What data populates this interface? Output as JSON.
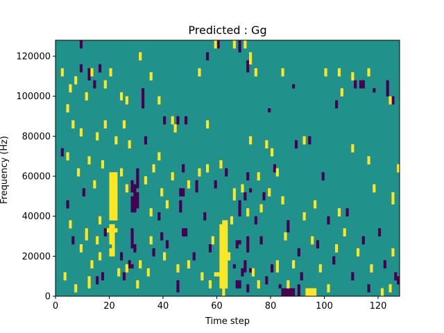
{
  "chart_data": {
    "type": "heatmap",
    "title": "Predicted : Gg",
    "xlabel": "Time step",
    "ylabel": "Frequency (Hz)",
    "xlim": [
      0,
      128
    ],
    "ylim": [
      0,
      128000
    ],
    "xticks": [
      0,
      20,
      40,
      60,
      80,
      100,
      120
    ],
    "yticks": [
      0,
      20000,
      40000,
      60000,
      80000,
      100000,
      120000
    ],
    "ytick_labels": [
      "0",
      "20000",
      "40000",
      "60000",
      "80000",
      "100000",
      "120000"
    ],
    "grid": false,
    "background_value": 0,
    "colors": {
      "background": "#21918c",
      "high": "#fde725",
      "low": "#440154"
    },
    "time_steps": 128,
    "frequency_bins": 64,
    "bin_width_hz": 2000,
    "cells": [
      [
        20,
        0,
        20000,
        24000,
        1
      ],
      [
        21,
        0,
        20000,
        24000,
        1
      ],
      [
        20,
        0,
        26000,
        36000,
        1
      ],
      [
        21,
        0,
        24000,
        36000,
        1
      ],
      [
        20,
        0,
        38000,
        62000,
        1
      ],
      [
        21,
        0,
        38000,
        62000,
        1
      ],
      [
        22,
        0,
        38000,
        62000,
        1
      ],
      [
        19,
        0,
        32000,
        34000,
        1
      ],
      [
        22,
        0,
        32000,
        34000,
        1
      ],
      [
        61,
        0,
        4000,
        36000,
        1
      ],
      [
        62,
        0,
        4000,
        38000,
        1
      ],
      [
        63,
        0,
        4000,
        38000,
        1
      ],
      [
        60,
        0,
        10000,
        12000,
        1
      ],
      [
        59,
        0,
        10000,
        12000,
        1
      ],
      [
        62,
        0,
        0,
        4000,
        1
      ],
      [
        93,
        0,
        0,
        4000,
        1
      ],
      [
        94,
        0,
        0,
        4000,
        1
      ],
      [
        95,
        0,
        0,
        4000,
        1
      ],
      [
        96,
        0,
        0,
        4000,
        1
      ],
      [
        84,
        0,
        0,
        4000,
        -1
      ],
      [
        85,
        0,
        0,
        4000,
        -1
      ],
      [
        86,
        0,
        0,
        4000,
        -1
      ],
      [
        87,
        0,
        0,
        4000,
        -1
      ],
      [
        88,
        0,
        0,
        4000,
        -1
      ],
      [
        90,
        0,
        0,
        6000,
        -1
      ],
      [
        83,
        0,
        4000,
        6000,
        -1
      ],
      [
        28,
        0,
        42000,
        50000,
        -1
      ],
      [
        29,
        0,
        42000,
        56000,
        -1
      ],
      [
        28,
        0,
        52000,
        58000,
        -1
      ],
      [
        28,
        0,
        24000,
        34000,
        -1
      ],
      [
        28,
        0,
        14000,
        16000,
        -1
      ],
      [
        29,
        0,
        22000,
        26000,
        -1
      ],
      [
        30,
        0,
        54000,
        64000,
        -1
      ],
      [
        30,
        0,
        44000,
        52000,
        -1
      ],
      [
        47,
        0,
        30000,
        34000,
        -1
      ],
      [
        48,
        0,
        30000,
        34000,
        -1
      ],
      [
        46,
        0,
        50000,
        54000,
        -1
      ],
      [
        47,
        0,
        50000,
        54000,
        -1
      ],
      [
        67,
        0,
        4000,
        8000,
        -1
      ],
      [
        68,
        0,
        4000,
        8000,
        -1
      ],
      [
        67,
        0,
        24000,
        28000,
        -1
      ],
      [
        68,
        0,
        26000,
        28000,
        -1
      ],
      [
        70,
        0,
        12000,
        18000,
        -1
      ],
      [
        71,
        0,
        22000,
        30000,
        -1
      ],
      [
        69,
        0,
        10000,
        14000,
        -1
      ],
      [
        72,
        0,
        12000,
        14000,
        -1
      ],
      [
        71,
        0,
        2000,
        6000,
        -1
      ],
      [
        66,
        0,
        14000,
        16000,
        -1
      ],
      [
        70,
        0,
        48000,
        52000,
        -1
      ],
      [
        68,
        0,
        40000,
        48000,
        -1
      ],
      [
        72,
        0,
        52000,
        54000,
        -1
      ],
      [
        71,
        0,
        58000,
        62000,
        -1
      ],
      [
        9,
        0,
        124000,
        128000,
        -1
      ],
      [
        9,
        0,
        112000,
        116000,
        -1
      ],
      [
        12,
        0,
        108000,
        114000,
        -1
      ],
      [
        14,
        0,
        104000,
        108000,
        -1
      ],
      [
        16,
        0,
        112000,
        116000,
        -1
      ],
      [
        32,
        0,
        94000,
        104000,
        -1
      ],
      [
        33,
        0,
        76000,
        80000,
        -1
      ],
      [
        45,
        0,
        86000,
        90000,
        -1
      ],
      [
        56,
        0,
        118000,
        122000,
        -1
      ],
      [
        60,
        0,
        124000,
        128000,
        -1
      ],
      [
        68,
        0,
        122000,
        128000,
        -1
      ],
      [
        71,
        0,
        112000,
        118000,
        -1
      ],
      [
        88,
        0,
        104000,
        106000,
        -1
      ],
      [
        104,
        0,
        94000,
        98000,
        -1
      ],
      [
        113,
        0,
        104000,
        108000,
        -1
      ],
      [
        118,
        0,
        102000,
        104000,
        -1
      ],
      [
        123,
        0,
        100000,
        108000,
        -1
      ],
      [
        125,
        0,
        96000,
        100000,
        -1
      ],
      [
        79,
        0,
        92000,
        94000,
        -1
      ],
      [
        89,
        0,
        74000,
        78000,
        -1
      ],
      [
        94,
        0,
        76000,
        80000,
        -1
      ],
      [
        99,
        0,
        58000,
        62000,
        -1
      ],
      [
        111,
        0,
        104000,
        108000,
        -1
      ],
      [
        114,
        0,
        104000,
        108000,
        -1
      ],
      [
        40,
        0,
        86000,
        90000,
        -1
      ],
      [
        48,
        0,
        86000,
        90000,
        -1
      ],
      [
        47,
        0,
        62000,
        66000,
        -1
      ],
      [
        52,
        0,
        52000,
        58000,
        -1
      ],
      [
        55,
        0,
        38000,
        42000,
        -1
      ],
      [
        59,
        0,
        54000,
        58000,
        -1
      ],
      [
        63,
        0,
        60000,
        64000,
        -1
      ],
      [
        77,
        0,
        48000,
        52000,
        -1
      ],
      [
        81,
        0,
        62000,
        66000,
        -1
      ],
      [
        86,
        0,
        32000,
        38000,
        -1
      ],
      [
        90,
        0,
        20000,
        24000,
        -1
      ],
      [
        101,
        0,
        36000,
        40000,
        -1
      ],
      [
        108,
        0,
        40000,
        44000,
        -1
      ],
      [
        114,
        0,
        26000,
        30000,
        -1
      ],
      [
        120,
        0,
        30000,
        34000,
        -1
      ],
      [
        126,
        0,
        8000,
        12000,
        -1
      ],
      [
        2,
        0,
        70000,
        74000,
        -1
      ],
      [
        4,
        0,
        44000,
        48000,
        -1
      ],
      [
        6,
        0,
        26000,
        30000,
        -1
      ],
      [
        10,
        0,
        50000,
        54000,
        -1
      ],
      [
        15,
        0,
        6000,
        10000,
        -1
      ],
      [
        17,
        0,
        8000,
        12000,
        -1
      ],
      [
        18,
        0,
        30000,
        34000,
        -1
      ],
      [
        24,
        0,
        18000,
        22000,
        -1
      ],
      [
        25,
        0,
        8000,
        12000,
        -1
      ],
      [
        27,
        0,
        14000,
        18000,
        -1
      ],
      [
        36,
        0,
        20000,
        24000,
        -1
      ],
      [
        38,
        0,
        38000,
        42000,
        -1
      ],
      [
        39,
        0,
        28000,
        32000,
        -1
      ],
      [
        41,
        0,
        24000,
        28000,
        -1
      ],
      [
        45,
        0,
        2000,
        8000,
        -1
      ],
      [
        46,
        0,
        42000,
        48000,
        -1
      ],
      [
        51,
        0,
        18000,
        22000,
        -1
      ],
      [
        57,
        0,
        22000,
        26000,
        -1
      ],
      [
        74,
        0,
        36000,
        40000,
        -1
      ],
      [
        76,
        0,
        26000,
        30000,
        -1
      ],
      [
        78,
        0,
        6000,
        10000,
        -1
      ],
      [
        80,
        0,
        12000,
        16000,
        -1
      ],
      [
        91,
        0,
        8000,
        12000,
        -1
      ],
      [
        97,
        0,
        24000,
        28000,
        -1
      ],
      [
        103,
        0,
        16000,
        20000,
        -1
      ],
      [
        110,
        0,
        8000,
        12000,
        -1
      ],
      [
        116,
        0,
        2000,
        6000,
        -1
      ],
      [
        122,
        0,
        14000,
        18000,
        -1
      ],
      [
        127,
        0,
        6000,
        10000,
        -1
      ],
      [
        2,
        0,
        110000,
        114000,
        1
      ],
      [
        4,
        0,
        92000,
        96000,
        1
      ],
      [
        5,
        0,
        102000,
        106000,
        1
      ],
      [
        7,
        0,
        106000,
        110000,
        1
      ],
      [
        11,
        0,
        98000,
        102000,
        1
      ],
      [
        13,
        0,
        110000,
        114000,
        1
      ],
      [
        18,
        0,
        104000,
        108000,
        1
      ],
      [
        20,
        0,
        110000,
        114000,
        1
      ],
      [
        24,
        0,
        98000,
        102000,
        1
      ],
      [
        26,
        0,
        96000,
        100000,
        1
      ],
      [
        31,
        0,
        118000,
        122000,
        1
      ],
      [
        35,
        0,
        108000,
        112000,
        1
      ],
      [
        38,
        0,
        96000,
        100000,
        1
      ],
      [
        43,
        0,
        86000,
        90000,
        1
      ],
      [
        53,
        0,
        110000,
        114000,
        1
      ],
      [
        59,
        0,
        124000,
        128000,
        1
      ],
      [
        66,
        0,
        124000,
        128000,
        1
      ],
      [
        70,
        0,
        124000,
        128000,
        1
      ],
      [
        72,
        0,
        116000,
        122000,
        1
      ],
      [
        74,
        0,
        110000,
        114000,
        1
      ],
      [
        84,
        0,
        110000,
        114000,
        1
      ],
      [
        100,
        0,
        110000,
        114000,
        1
      ],
      [
        105,
        0,
        110000,
        114000,
        1
      ],
      [
        106,
        0,
        100000,
        104000,
        1
      ],
      [
        110,
        0,
        108000,
        112000,
        1
      ],
      [
        116,
        0,
        110000,
        114000,
        1
      ],
      [
        124,
        0,
        96000,
        100000,
        1
      ],
      [
        6,
        0,
        84000,
        88000,
        1
      ],
      [
        9,
        0,
        80000,
        84000,
        1
      ],
      [
        15,
        0,
        78000,
        82000,
        1
      ],
      [
        18,
        0,
        84000,
        88000,
        1
      ],
      [
        22,
        0,
        76000,
        80000,
        1
      ],
      [
        25,
        0,
        84000,
        88000,
        1
      ],
      [
        27,
        0,
        74000,
        78000,
        1
      ],
      [
        44,
        0,
        82000,
        86000,
        1
      ],
      [
        56,
        0,
        84000,
        88000,
        1
      ],
      [
        72,
        0,
        76000,
        80000,
        1
      ],
      [
        78,
        0,
        74000,
        78000,
        1
      ],
      [
        80,
        0,
        70000,
        74000,
        1
      ],
      [
        92,
        0,
        76000,
        80000,
        1
      ],
      [
        110,
        0,
        72000,
        76000,
        1
      ],
      [
        116,
        0,
        66000,
        70000,
        1
      ],
      [
        127,
        0,
        62000,
        66000,
        1
      ],
      [
        4,
        0,
        68000,
        72000,
        1
      ],
      [
        8,
        0,
        60000,
        64000,
        1
      ],
      [
        12,
        0,
        66000,
        70000,
        1
      ],
      [
        14,
        0,
        54000,
        58000,
        1
      ],
      [
        17,
        0,
        64000,
        68000,
        1
      ],
      [
        24,
        0,
        60000,
        64000,
        1
      ],
      [
        26,
        0,
        52000,
        56000,
        1
      ],
      [
        33,
        0,
        56000,
        60000,
        1
      ],
      [
        36,
        0,
        62000,
        66000,
        1
      ],
      [
        38,
        0,
        68000,
        72000,
        1
      ],
      [
        43,
        0,
        58000,
        62000,
        1
      ],
      [
        49,
        0,
        54000,
        58000,
        1
      ],
      [
        53,
        0,
        60000,
        64000,
        1
      ],
      [
        56,
        0,
        62000,
        66000,
        1
      ],
      [
        61,
        0,
        64000,
        68000,
        1
      ],
      [
        66,
        0,
        48000,
        54000,
        1
      ],
      [
        69,
        0,
        52000,
        56000,
        1
      ],
      [
        75,
        0,
        58000,
        62000,
        1
      ],
      [
        79,
        0,
        50000,
        54000,
        1
      ],
      [
        84,
        0,
        46000,
        50000,
        1
      ],
      [
        92,
        0,
        38000,
        42000,
        1
      ],
      [
        96,
        0,
        44000,
        48000,
        1
      ],
      [
        105,
        0,
        40000,
        44000,
        1
      ],
      [
        118,
        0,
        52000,
        56000,
        1
      ],
      [
        125,
        0,
        46000,
        52000,
        1
      ],
      [
        5,
        0,
        34000,
        38000,
        1
      ],
      [
        9,
        0,
        22000,
        26000,
        1
      ],
      [
        11,
        0,
        28000,
        34000,
        1
      ],
      [
        13,
        0,
        14000,
        18000,
        1
      ],
      [
        12,
        0,
        4000,
        10000,
        1
      ],
      [
        16,
        0,
        18000,
        22000,
        1
      ],
      [
        26,
        0,
        12000,
        16000,
        1
      ],
      [
        31,
        0,
        14000,
        18000,
        1
      ],
      [
        35,
        0,
        26000,
        30000,
        1
      ],
      [
        40,
        0,
        18000,
        22000,
        1
      ],
      [
        45,
        0,
        12000,
        16000,
        1
      ],
      [
        49,
        0,
        14000,
        18000,
        1
      ],
      [
        54,
        0,
        8000,
        12000,
        1
      ],
      [
        57,
        0,
        4000,
        8000,
        1
      ],
      [
        64,
        0,
        18000,
        22000,
        1
      ],
      [
        73,
        0,
        10000,
        14000,
        1
      ],
      [
        75,
        0,
        4000,
        8000,
        1
      ],
      [
        82,
        0,
        12000,
        18000,
        1
      ],
      [
        85,
        0,
        28000,
        32000,
        1
      ],
      [
        88,
        0,
        14000,
        18000,
        1
      ],
      [
        95,
        0,
        26000,
        30000,
        1
      ],
      [
        98,
        0,
        12000,
        16000,
        1
      ],
      [
        104,
        0,
        22000,
        26000,
        1
      ],
      [
        107,
        0,
        30000,
        34000,
        1
      ],
      [
        112,
        0,
        20000,
        24000,
        1
      ],
      [
        117,
        0,
        12000,
        16000,
        1
      ],
      [
        121,
        0,
        0,
        4000,
        1
      ],
      [
        125,
        0,
        20000,
        24000,
        1
      ],
      [
        3,
        0,
        8000,
        12000,
        1
      ],
      [
        7,
        0,
        2000,
        6000,
        1
      ],
      [
        30,
        0,
        4000,
        8000,
        1
      ],
      [
        34,
        0,
        10000,
        14000,
        1
      ],
      [
        58,
        0,
        26000,
        30000,
        1
      ],
      [
        86,
        0,
        4000,
        8000,
        1
      ],
      [
        101,
        0,
        2000,
        6000,
        1
      ],
      [
        124,
        0,
        2000,
        6000,
        1
      ],
      [
        71,
        0,
        40000,
        44000,
        1
      ],
      [
        76,
        0,
        42000,
        46000,
        1
      ],
      [
        65,
        0,
        36000,
        40000,
        1
      ],
      [
        82,
        0,
        60000,
        64000,
        1
      ],
      [
        39,
        0,
        50000,
        54000,
        1
      ],
      [
        41,
        0,
        44000,
        48000,
        1
      ],
      [
        35,
        0,
        40000,
        44000,
        1
      ],
      [
        16,
        0,
        36000,
        40000,
        1
      ],
      [
        15,
        0,
        26000,
        30000,
        1
      ],
      [
        23,
        0,
        10000,
        14000,
        1
      ]
    ]
  }
}
